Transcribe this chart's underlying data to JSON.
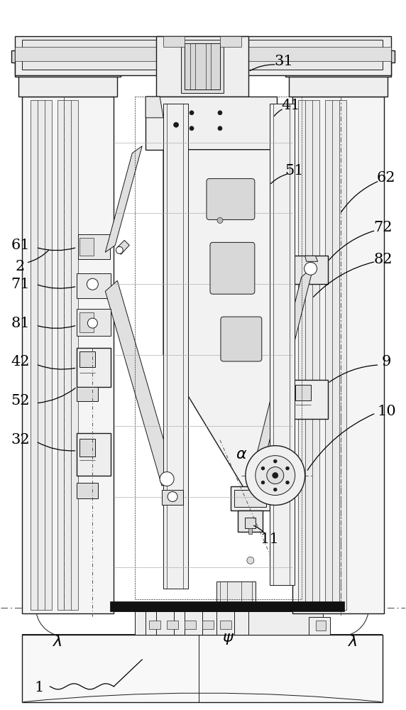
{
  "bg_color": "#ffffff",
  "lc": "#1a1a1a",
  "fig_width": 5.72,
  "fig_height": 10.0,
  "dpi": 100,
  "lw_main": 1.0,
  "lw_med": 0.7,
  "lw_thin": 0.45,
  "lw_thick": 1.4
}
